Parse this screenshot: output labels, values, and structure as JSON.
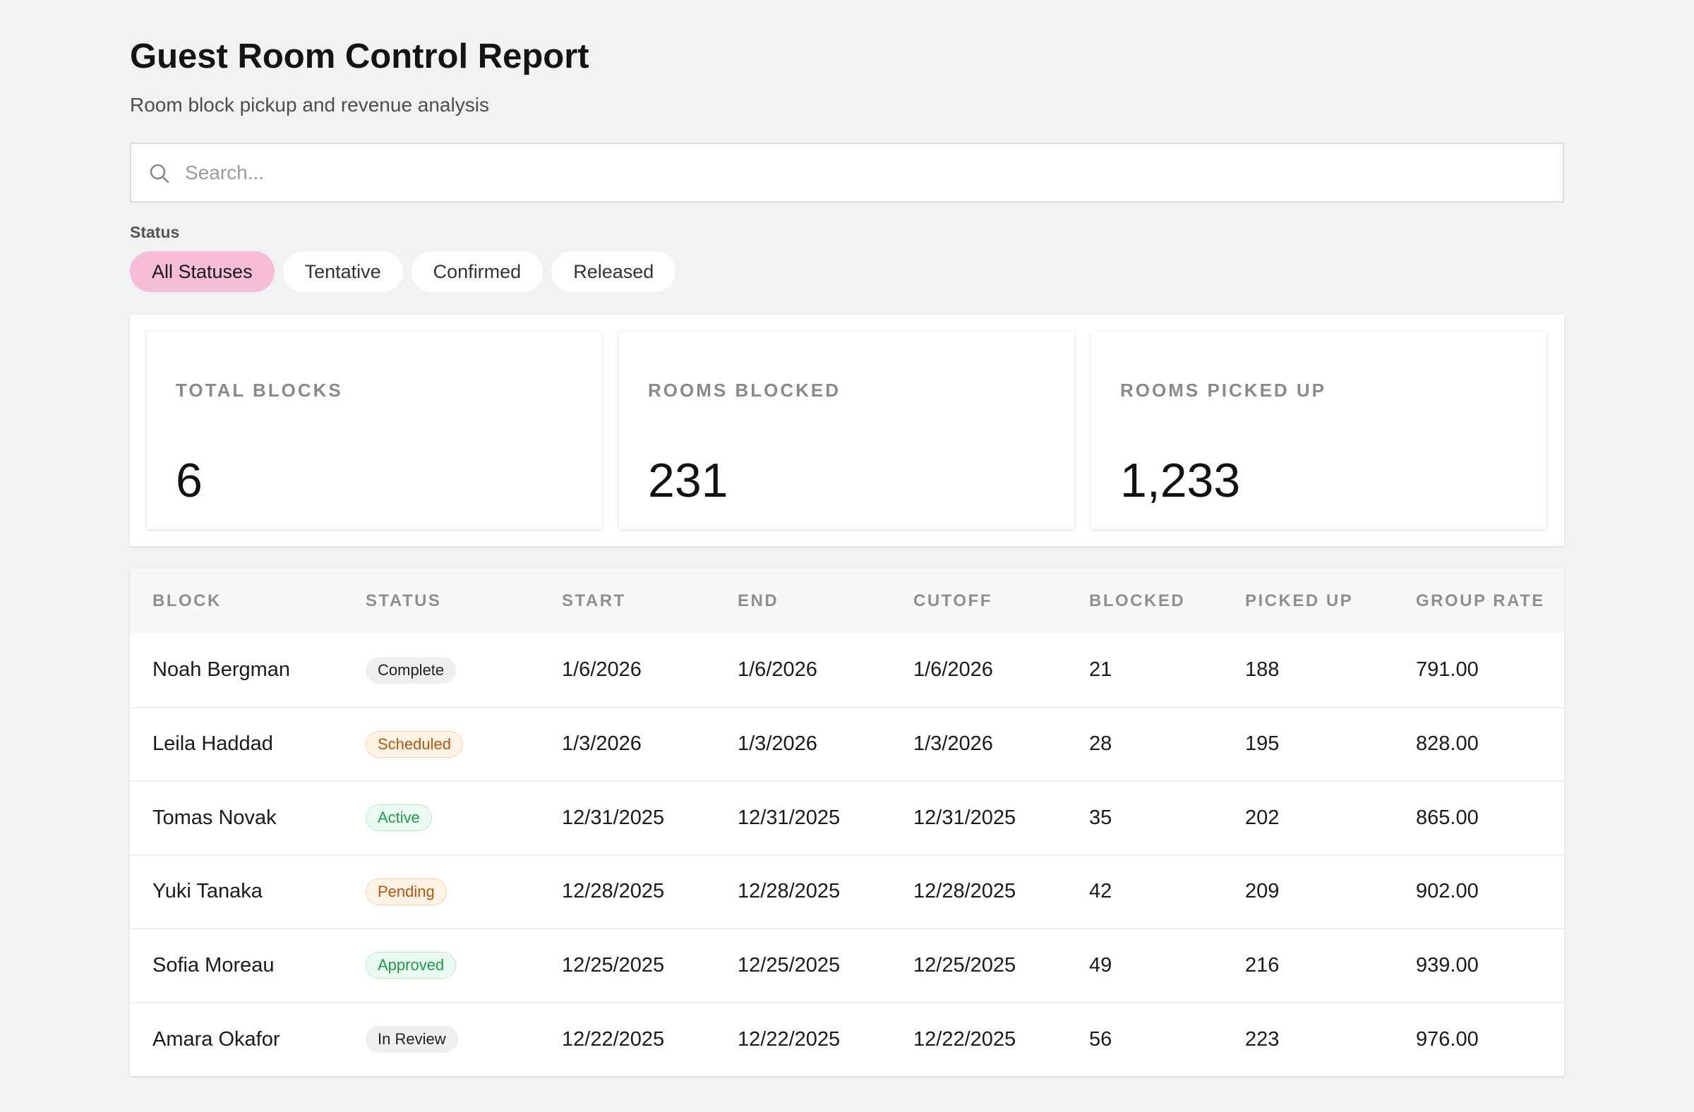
{
  "header": {
    "title": "Guest Room Control Report",
    "subtitle": "Room block pickup and revenue analysis"
  },
  "search": {
    "placeholder": "Search...",
    "value": "",
    "icon": "search-icon"
  },
  "filters": {
    "label": "Status",
    "options": [
      "All Statuses",
      "Tentative",
      "Confirmed",
      "Released"
    ],
    "selected": "All Statuses"
  },
  "stats": [
    {
      "label": "TOTAL BLOCKS",
      "value": "6"
    },
    {
      "label": "ROOMS BLOCKED",
      "value": "231"
    },
    {
      "label": "ROOMS PICKED UP",
      "value": "1,233"
    }
  ],
  "table": {
    "columns": [
      "BLOCK",
      "STATUS",
      "START",
      "END",
      "CUTOFF",
      "BLOCKED",
      "PICKED UP",
      "GROUP RATE"
    ],
    "rows": [
      {
        "block": "Noah Bergman",
        "status": "Complete",
        "start": "1/6/2026",
        "end": "1/6/2026",
        "cutoff": "1/6/2026",
        "blocked": "21",
        "picked_up": "188",
        "group_rate": "791.00"
      },
      {
        "block": "Leila Haddad",
        "status": "Scheduled",
        "start": "1/3/2026",
        "end": "1/3/2026",
        "cutoff": "1/3/2026",
        "blocked": "28",
        "picked_up": "195",
        "group_rate": "828.00"
      },
      {
        "block": "Tomas Novak",
        "status": "Active",
        "start": "12/31/2025",
        "end": "12/31/2025",
        "cutoff": "12/31/2025",
        "blocked": "35",
        "picked_up": "202",
        "group_rate": "865.00"
      },
      {
        "block": "Yuki Tanaka",
        "status": "Pending",
        "start": "12/28/2025",
        "end": "12/28/2025",
        "cutoff": "12/28/2025",
        "blocked": "42",
        "picked_up": "209",
        "group_rate": "902.00"
      },
      {
        "block": "Sofia Moreau",
        "status": "Approved",
        "start": "12/25/2025",
        "end": "12/25/2025",
        "cutoff": "12/25/2025",
        "blocked": "49",
        "picked_up": "216",
        "group_rate": "939.00"
      },
      {
        "block": "Amara Okafor",
        "status": "In Review",
        "start": "12/22/2025",
        "end": "12/22/2025",
        "cutoff": "12/22/2025",
        "blocked": "56",
        "picked_up": "223",
        "group_rate": "976.00"
      }
    ]
  },
  "colors": {
    "background": "#f2f2f2",
    "active_chip": "#f7bcd6",
    "badge_neutral": "#efefef",
    "badge_orange_text": "#b5560c",
    "badge_green_text": "#1e9a4b"
  }
}
